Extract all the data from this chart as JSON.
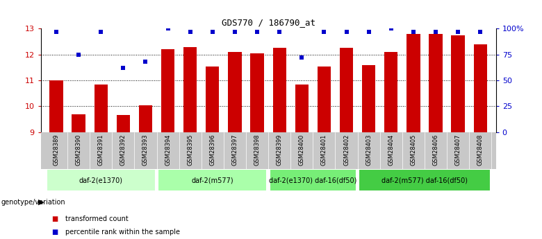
{
  "title": "GDS770 / 186790_at",
  "samples": [
    "GSM28389",
    "GSM28390",
    "GSM28391",
    "GSM28392",
    "GSM28393",
    "GSM28394",
    "GSM28395",
    "GSM28396",
    "GSM28397",
    "GSM28398",
    "GSM28399",
    "GSM28400",
    "GSM28401",
    "GSM28402",
    "GSM28403",
    "GSM28404",
    "GSM28405",
    "GSM28406",
    "GSM28407",
    "GSM28408"
  ],
  "bar_values": [
    11.0,
    9.7,
    10.85,
    9.65,
    10.05,
    12.2,
    12.3,
    11.55,
    12.1,
    12.05,
    12.25,
    10.85,
    11.55,
    12.25,
    11.6,
    12.1,
    12.8,
    12.8,
    12.75,
    12.4
  ],
  "dot_values": [
    97,
    75,
    97,
    62,
    68,
    100,
    97,
    97,
    97,
    97,
    97,
    72,
    97,
    97,
    97,
    100,
    97,
    97,
    97,
    97
  ],
  "bar_color": "#cc0000",
  "dot_color": "#0000cc",
  "ylim": [
    9,
    13
  ],
  "yticks_left": [
    9,
    10,
    11,
    12,
    13
  ],
  "yticks_right": [
    0,
    25,
    50,
    75,
    100
  ],
  "ytick_labels_right": [
    "0",
    "25",
    "50",
    "75",
    "100%"
  ],
  "grid_lines": [
    10,
    11,
    12
  ],
  "groups": [
    {
      "label": "daf-2(e1370)",
      "start": 0,
      "end": 4,
      "color": "#ccffcc"
    },
    {
      "label": "daf-2(m577)",
      "start": 5,
      "end": 9,
      "color": "#aaffaa"
    },
    {
      "label": "daf-2(e1370) daf-16(df50)",
      "start": 10,
      "end": 13,
      "color": "#77ee77"
    },
    {
      "label": "daf-2(m577) daf-16(df50)",
      "start": 14,
      "end": 19,
      "color": "#44cc44"
    }
  ],
  "genotype_label": "genotype/variation",
  "legend_items": [
    {
      "label": "transformed count",
      "color": "#cc0000"
    },
    {
      "label": "percentile rank within the sample",
      "color": "#0000cc"
    }
  ],
  "bar_width": 0.6,
  "xtick_bg_color": "#c8c8c8",
  "group_border_color": "#ffffff"
}
